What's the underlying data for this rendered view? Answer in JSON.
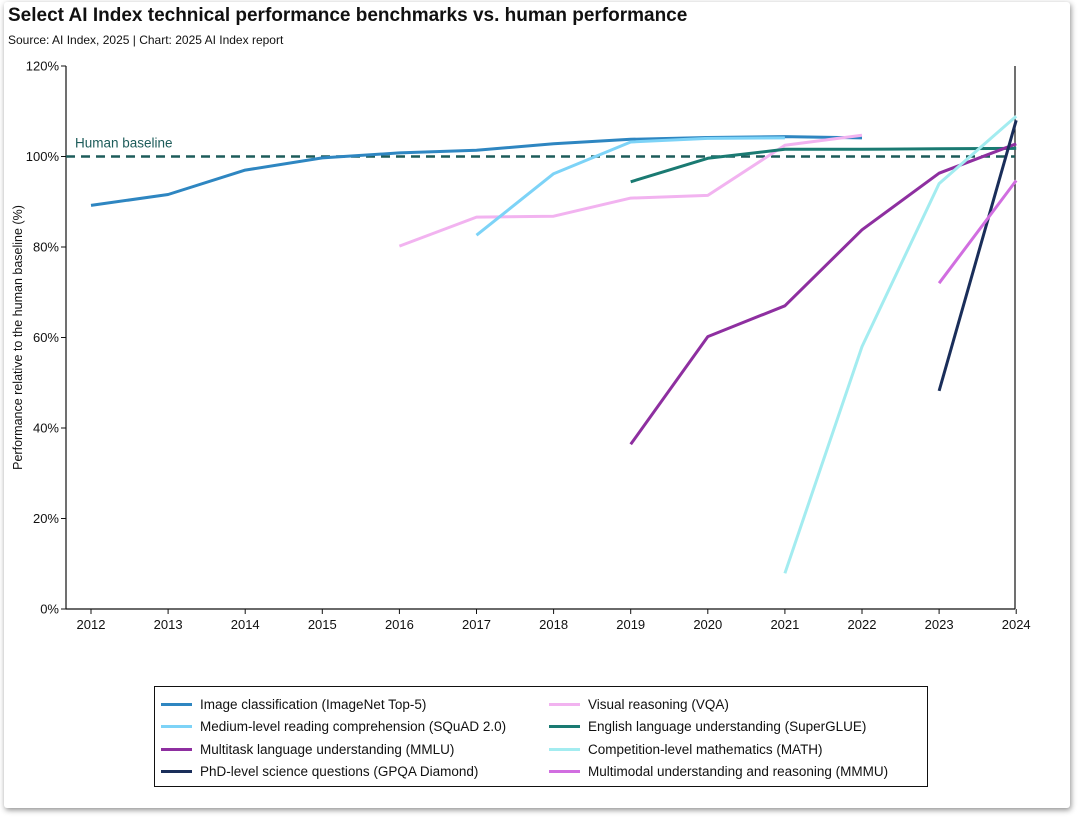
{
  "title": "Select AI Index technical performance benchmarks vs. human performance",
  "subtitle": "Source: AI Index, 2025 | Chart: 2025 AI Index report",
  "chart_data": {
    "type": "line",
    "title": "Select AI Index technical performance benchmarks vs. human performance",
    "xlabel": "",
    "ylabel": "Performance relative to the human baseline (%)",
    "x": [
      2012,
      2013,
      2014,
      2015,
      2016,
      2017,
      2018,
      2019,
      2020,
      2021,
      2022,
      2023,
      2024
    ],
    "xtick_labels": [
      "2012",
      "2013",
      "2014",
      "2015",
      "2016",
      "2017",
      "2018",
      "2019",
      "2020",
      "2021",
      "2022",
      "2023",
      "2024"
    ],
    "ylim": [
      0,
      120
    ],
    "yticks": [
      0,
      20,
      40,
      60,
      80,
      100,
      120
    ],
    "ytick_labels": [
      "0%",
      "20%",
      "40%",
      "60%",
      "80%",
      "100%",
      "120%"
    ],
    "baseline": {
      "value": 100,
      "label": "Human baseline",
      "color": "#1d5c5a"
    },
    "series": [
      {
        "name": "Image classification (ImageNet Top-5)",
        "color": "#2e86c1",
        "x": [
          2012,
          2013,
          2014,
          2015,
          2016,
          2017,
          2018,
          2019,
          2020,
          2021,
          2022
        ],
        "values": [
          89.2,
          91.6,
          97.0,
          99.7,
          100.8,
          101.4,
          102.8,
          103.8,
          104.2,
          104.4,
          104.1
        ]
      },
      {
        "name": "Visual reasoning (VQA)",
        "color": "#f2b3f0",
        "x": [
          2016,
          2017,
          2018,
          2019,
          2020,
          2021,
          2022
        ],
        "values": [
          80.2,
          86.6,
          86.8,
          90.8,
          91.4,
          102.5,
          104.7
        ]
      },
      {
        "name": "Medium-level reading comprehension (SQuAD 2.0)",
        "color": "#7dd3f7",
        "x": [
          2017,
          2018,
          2019,
          2020,
          2021
        ],
        "values": [
          82.6,
          96.2,
          103.2,
          104.0,
          104.1
        ]
      },
      {
        "name": "English language understanding (SuperGLUE)",
        "color": "#1a7a72",
        "x": [
          2019,
          2020,
          2021,
          2022,
          2023,
          2024
        ],
        "values": [
          94.4,
          99.6,
          101.6,
          101.6,
          101.7,
          101.8
        ]
      },
      {
        "name": "Multitask language understanding (MMLU)",
        "color": "#8e2fa0",
        "x": [
          2019,
          2020,
          2021,
          2022,
          2023,
          2024
        ],
        "values": [
          36.4,
          60.2,
          67.0,
          83.8,
          96.3,
          102.8
        ]
      },
      {
        "name": "Competition-level mathematics (MATH)",
        "color": "#a3ecf0",
        "x": [
          2021,
          2022,
          2023,
          2024
        ],
        "values": [
          7.9,
          58.0,
          94.0,
          108.9
        ]
      },
      {
        "name": "PhD-level science questions (GPQA Diamond)",
        "color": "#1a2e5a",
        "x": [
          2023,
          2024
        ],
        "values": [
          48.2,
          108.0
        ]
      },
      {
        "name": "Multimodal understanding and reasoning (MMMU)",
        "color": "#d16ee0",
        "x": [
          2023,
          2024
        ],
        "values": [
          72.0,
          94.7
        ]
      }
    ],
    "legend_position": "bottom"
  },
  "legend": [
    {
      "label": "Image classification (ImageNet Top-5)",
      "color": "#2e86c1"
    },
    {
      "label": "Visual reasoning (VQA)",
      "color": "#f2b3f0"
    },
    {
      "label": "Medium-level reading comprehension (SQuAD 2.0)",
      "color": "#7dd3f7"
    },
    {
      "label": "English language understanding (SuperGLUE)",
      "color": "#1a7a72"
    },
    {
      "label": "Multitask language understanding (MMLU)",
      "color": "#8e2fa0"
    },
    {
      "label": "Competition-level mathematics (MATH)",
      "color": "#a3ecf0"
    },
    {
      "label": "PhD-level science questions (GPQA Diamond)",
      "color": "#1a2e5a"
    },
    {
      "label": "Multimodal understanding and reasoning (MMMU)",
      "color": "#d16ee0"
    }
  ]
}
